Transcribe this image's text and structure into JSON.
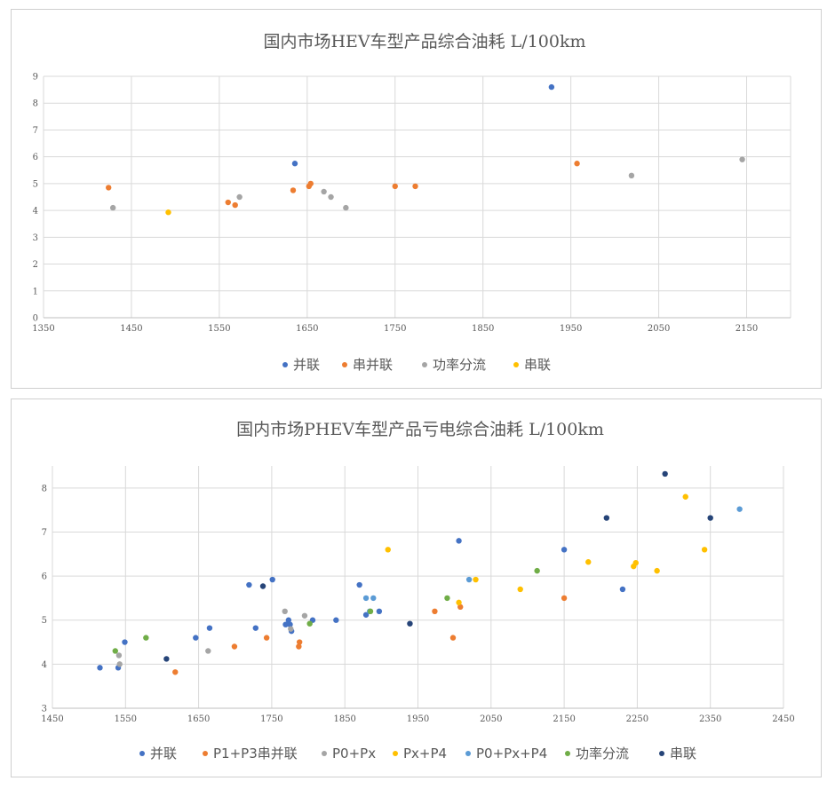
{
  "colors": {
    "blue": "#4472C4",
    "orange": "#ED7D31",
    "gray": "#A5A5A5",
    "yellow": "#FFC000",
    "lightblue": "#5B9BD5",
    "green": "#70AD47",
    "navy": "#264478"
  },
  "chart_data": [
    {
      "type": "scatter",
      "title": "国内市场HEV车型产品综合油耗 L/100km",
      "xlim": [
        1350,
        2200
      ],
      "ylim": [
        0,
        9
      ],
      "xticks": [
        1350,
        1450,
        1550,
        1650,
        1750,
        1850,
        1950,
        2050,
        2150
      ],
      "yticks": [
        0,
        1,
        2,
        3,
        4,
        5,
        6,
        7,
        8,
        9
      ],
      "grid": true,
      "legend_position": "bottom",
      "series": [
        {
          "name": "并联",
          "color": "#4472C4",
          "points": [
            [
              1636,
              5.75
            ],
            [
              1928,
              8.6
            ]
          ]
        },
        {
          "name": "串并联",
          "color": "#ED7D31",
          "points": [
            [
              1424,
              4.85
            ],
            [
              1560,
              4.3
            ],
            [
              1568,
              4.2
            ],
            [
              1634,
              4.75
            ],
            [
              1652,
              4.9
            ],
            [
              1654,
              5.0
            ],
            [
              1750,
              4.9
            ],
            [
              1773,
              4.9
            ],
            [
              1957,
              5.75
            ]
          ]
        },
        {
          "name": "功率分流",
          "color": "#A5A5A5",
          "points": [
            [
              1429,
              4.1
            ],
            [
              1573,
              4.5
            ],
            [
              1669,
              4.7
            ],
            [
              1677,
              4.5
            ],
            [
              1694,
              4.1
            ],
            [
              2019,
              5.3
            ],
            [
              2145,
              5.9
            ]
          ]
        },
        {
          "name": "串联",
          "color": "#FFC000",
          "points": [
            [
              1492,
              3.93
            ]
          ]
        }
      ]
    },
    {
      "type": "scatter",
      "title": "国内市场PHEV车型产品亏电综合油耗 L/100km",
      "xlim": [
        1450,
        2450
      ],
      "ylim": [
        3,
        8.5
      ],
      "xticks": [
        1450,
        1550,
        1650,
        1750,
        1850,
        1950,
        2050,
        2150,
        2250,
        2350,
        2450
      ],
      "yticks": [
        3,
        4,
        5,
        6,
        7,
        8
      ],
      "grid": true,
      "legend_position": "bottom",
      "series": [
        {
          "name": "并联",
          "color": "#4472C4",
          "points": [
            [
              1515,
              3.92
            ],
            [
              1540,
              3.92
            ],
            [
              1549,
              4.5
            ],
            [
              1646,
              4.6
            ],
            [
              1665,
              4.82
            ],
            [
              1719,
              5.8
            ],
            [
              1728,
              4.82
            ],
            [
              1751,
              5.92
            ],
            [
              1769,
              4.9
            ],
            [
              1773,
              5.0
            ],
            [
              1775,
              4.9
            ],
            [
              1777,
              4.75
            ],
            [
              1806,
              5.0
            ],
            [
              1838,
              5.0
            ],
            [
              1870,
              5.8
            ],
            [
              1879,
              5.12
            ],
            [
              1897,
              5.2
            ],
            [
              2006,
              6.8
            ],
            [
              2150,
              6.6
            ],
            [
              2230,
              5.7
            ]
          ]
        },
        {
          "name": "P1+P3串并联",
          "color": "#ED7D31",
          "points": [
            [
              1618,
              3.82
            ],
            [
              1699,
              4.4
            ],
            [
              1743,
              4.6
            ],
            [
              1787,
              4.4
            ],
            [
              1788,
              4.5
            ],
            [
              1973,
              5.2
            ],
            [
              1998,
              4.6
            ],
            [
              2008,
              5.3
            ],
            [
              2150,
              5.5
            ]
          ]
        },
        {
          "name": "P0+Px",
          "color": "#A5A5A5",
          "points": [
            [
              1541,
              4.2
            ],
            [
              1542,
              4.0
            ],
            [
              1663,
              4.3
            ],
            [
              1768,
              5.2
            ],
            [
              1776,
              4.8
            ],
            [
              1795,
              5.1
            ]
          ]
        },
        {
          "name": "Px+P4",
          "color": "#FFC000",
          "points": [
            [
              1909,
              6.6
            ],
            [
              2006,
              5.4
            ],
            [
              2029,
              5.92
            ],
            [
              2090,
              5.7
            ],
            [
              2183,
              6.32
            ],
            [
              2245,
              6.22
            ],
            [
              2248,
              6.3
            ],
            [
              2277,
              6.12
            ],
            [
              2316,
              7.8
            ],
            [
              2342,
              6.6
            ]
          ]
        },
        {
          "name": "P0+Px+P4",
          "color": "#5B9BD5",
          "points": [
            [
              1879,
              5.5
            ],
            [
              1884,
              5.2
            ],
            [
              1889,
              5.5
            ],
            [
              2020,
              5.92
            ],
            [
              2390,
              7.52
            ]
          ]
        },
        {
          "name": "功率分流",
          "color": "#70AD47",
          "points": [
            [
              1536,
              4.3
            ],
            [
              1578,
              4.6
            ],
            [
              1802,
              4.92
            ],
            [
              1885,
              5.2
            ],
            [
              1990,
              5.5
            ],
            [
              2113,
              6.12
            ]
          ]
        },
        {
          "name": "串联",
          "color": "#264478",
          "points": [
            [
              1606,
              4.12
            ],
            [
              1738,
              5.77
            ],
            [
              1939,
              4.92
            ],
            [
              2208,
              7.32
            ],
            [
              2288,
              8.32
            ],
            [
              2350,
              7.32
            ]
          ]
        }
      ]
    }
  ]
}
